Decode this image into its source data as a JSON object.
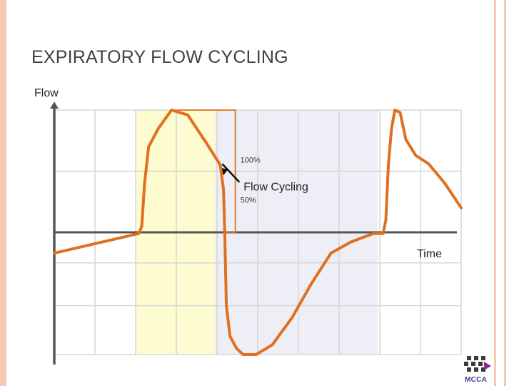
{
  "slide": {
    "title": "EXPIRATORY FLOW CYCLING",
    "logo_text": "MCCA"
  },
  "colors": {
    "waveform": "#e07020",
    "inspiration_band": "#fdfbd0",
    "expiration_band": "#eeeff6",
    "grid": "#d6d6d6",
    "axis": "#555555",
    "arrow": "#111111",
    "border": "#f6c9b3"
  },
  "chart_data": {
    "type": "line",
    "title": "",
    "ylabel": "Flow",
    "xlabel": "Time",
    "xlim": [
      0,
      100
    ],
    "ylim": [
      -100,
      100
    ],
    "grid": true,
    "annotations": [
      {
        "text": "100%",
        "x": 44.5,
        "y": 60
      },
      {
        "text": "Flow Cycling",
        "x": 46,
        "y": 37
      },
      {
        "text": "50%",
        "x": 44.5,
        "y": 30
      }
    ],
    "series": [
      {
        "x": [
          0,
          20.8,
          21.5,
          22.2,
          23.2,
          25.6,
          28.8,
          32.8,
          37.6,
          40.8,
          41.2,
          41.6,
          41.9,
          42.3,
          43.2,
          44.8,
          46.4,
          49.6,
          53.6,
          58.4,
          63.2,
          68,
          72.8,
          78.4,
          80.8,
          81.5,
          82.1,
          82.9,
          83.7,
          85,
          86.4,
          88.8,
          92,
          96,
          100
        ],
        "y": [
          -17,
          -1,
          5,
          40,
          70,
          85,
          100,
          96,
          72,
          55,
          45,
          35,
          0,
          -60,
          -85,
          -95,
          -100,
          -100,
          -92,
          -70,
          -42,
          -17,
          -8,
          -1,
          -1,
          10,
          55,
          85,
          100,
          98,
          76,
          63,
          56,
          40,
          20
        ]
      }
    ]
  }
}
